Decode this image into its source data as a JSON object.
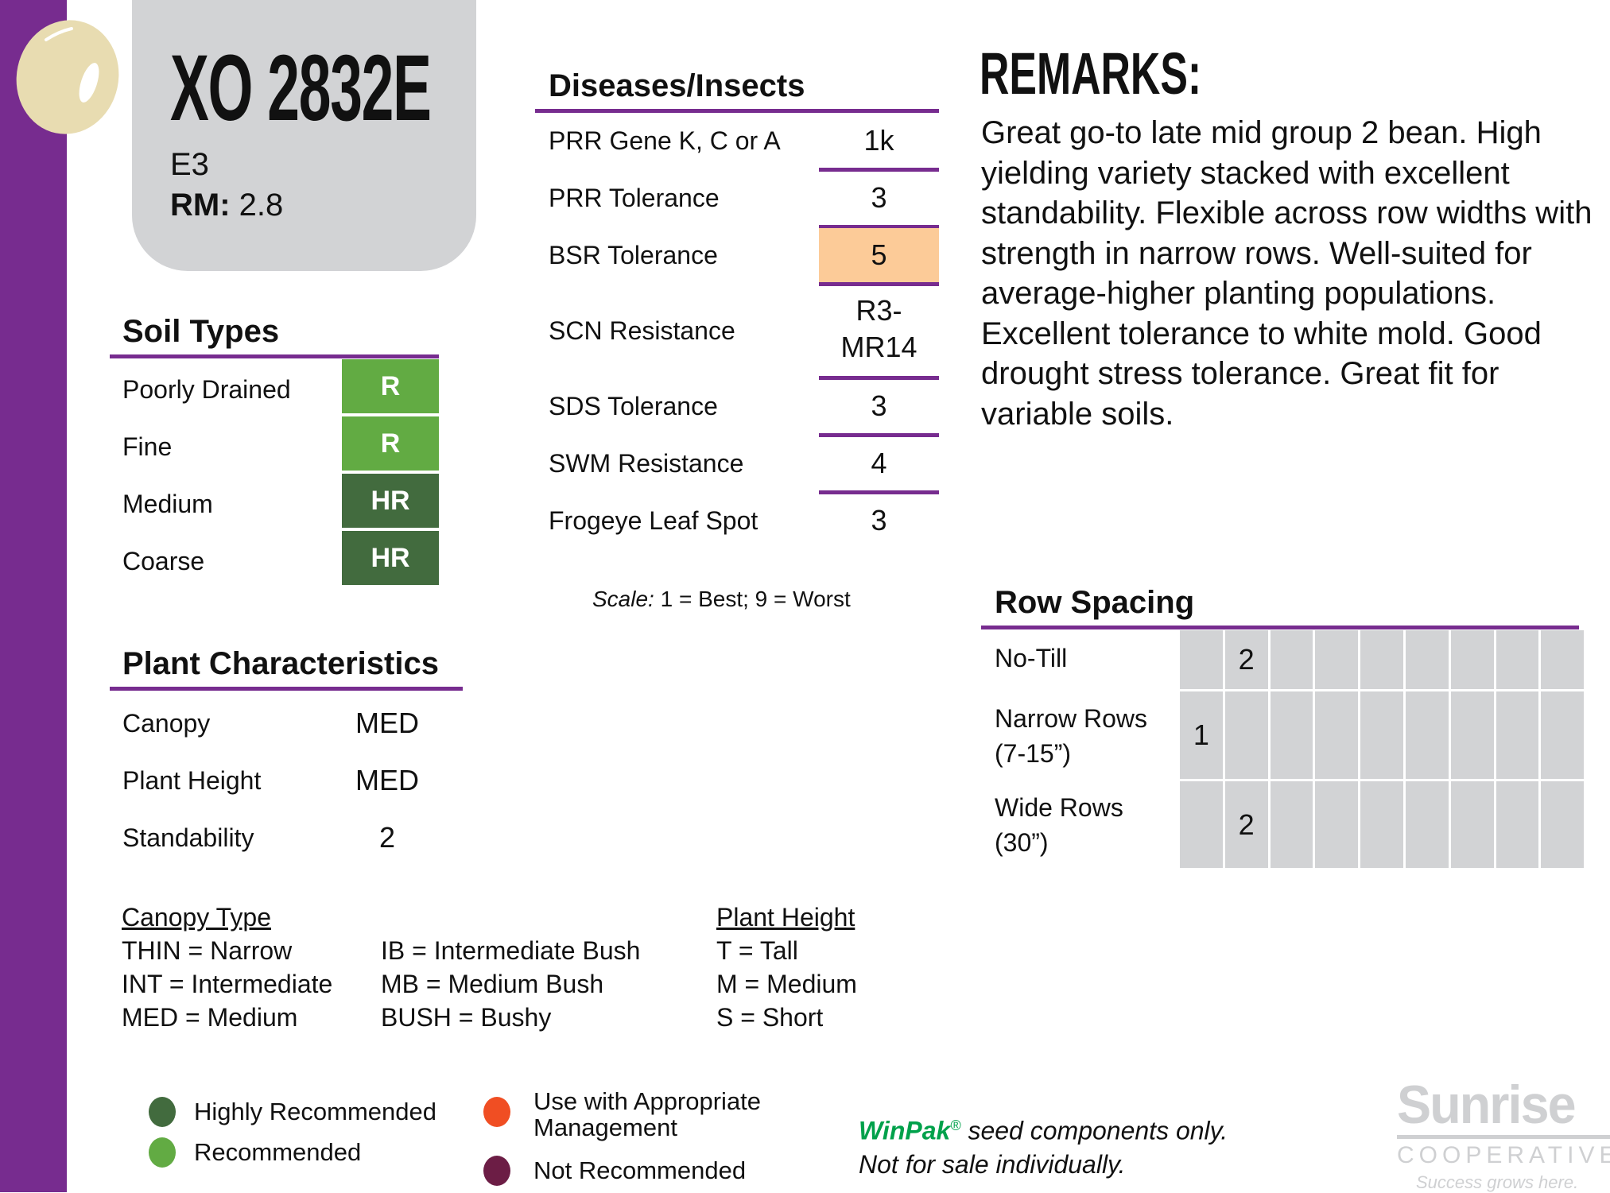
{
  "header": {
    "variety": "XO 2832E",
    "trait": "E3",
    "rm_label": "RM:",
    "rm_value": "2.8"
  },
  "colors": {
    "accent": "#772c8f",
    "hr": "#426b3e",
    "r": "#62ab43",
    "highlight": "#fccb98",
    "orange": "#f04e23",
    "not_rec": "#6c1d45",
    "winpak": "#00a14b"
  },
  "soil": {
    "title": "Soil Types",
    "rows": [
      {
        "label": "Poorly Drained",
        "value": "R"
      },
      {
        "label": "Fine",
        "value": "R"
      },
      {
        "label": "Medium",
        "value": "HR"
      },
      {
        "label": "Coarse",
        "value": "HR"
      }
    ]
  },
  "plant": {
    "title": "Plant Characteristics",
    "rows": [
      {
        "label": "Canopy",
        "value": "MED"
      },
      {
        "label": "Plant Height",
        "value": "MED"
      },
      {
        "label": "Standability",
        "value": "2"
      }
    ]
  },
  "diseases": {
    "title": "Diseases/Insects",
    "rows": [
      {
        "label": "PRR Gene K, C or A",
        "value": "1k"
      },
      {
        "label": "PRR Tolerance",
        "value": "3"
      },
      {
        "label": "BSR Tolerance",
        "value": "5",
        "highlight": true
      },
      {
        "label": "SCN Resistance",
        "value": "R3-",
        "value2": "MR14"
      },
      {
        "label": "SDS Tolerance",
        "value": "3"
      },
      {
        "label": "SWM Resistance",
        "value": "4"
      },
      {
        "label": "Frogeye Leaf Spot",
        "value": "3"
      }
    ],
    "scale_label": "Scale:",
    "scale_text": " 1 = Best; 9 = Worst"
  },
  "remarks": {
    "title": "REMARKS:",
    "text": "Great go-to late mid group 2 bean. High yielding variety stacked with excellent standability. Flexible across row widths with strength in narrow rows. Well-suited for average-higher planting populations. Excellent tolerance to white mold. Good drought stress tolerance. Great fit for variable soils."
  },
  "row_spacing": {
    "title": "Row Spacing",
    "rows": [
      {
        "label1": "No-Till",
        "label2": "",
        "rating": 2
      },
      {
        "label1": "Narrow Rows",
        "label2": "(7-15”)",
        "rating": 1
      },
      {
        "label1": "Wide Rows",
        "label2": "(30”)",
        "rating": 2
      }
    ]
  },
  "key": {
    "canopy_title": "Canopy Type",
    "canopy": [
      "THIN = Narrow",
      "INT = Intermediate",
      "MED = Medium"
    ],
    "canopy2": [
      "IB = Intermediate Bush",
      "MB = Medium Bush",
      "BUSH = Bushy"
    ],
    "height_title": "Plant Height",
    "height": [
      "T = Tall",
      "M = Medium",
      "S = Short"
    ]
  },
  "legend": {
    "hr": "Highly Recommended",
    "r": "Recommended",
    "uam": "Use with Appropriate Management",
    "nr": "Not Recommended"
  },
  "footer": {
    "brand": "WinPak",
    "reg": "®",
    "line1": " seed components only.",
    "line2": "Not for sale individually.",
    "logo_name": "Sunrise",
    "logo_sub": "COOPERATIVE",
    "logo_tag": "Success grows here."
  }
}
